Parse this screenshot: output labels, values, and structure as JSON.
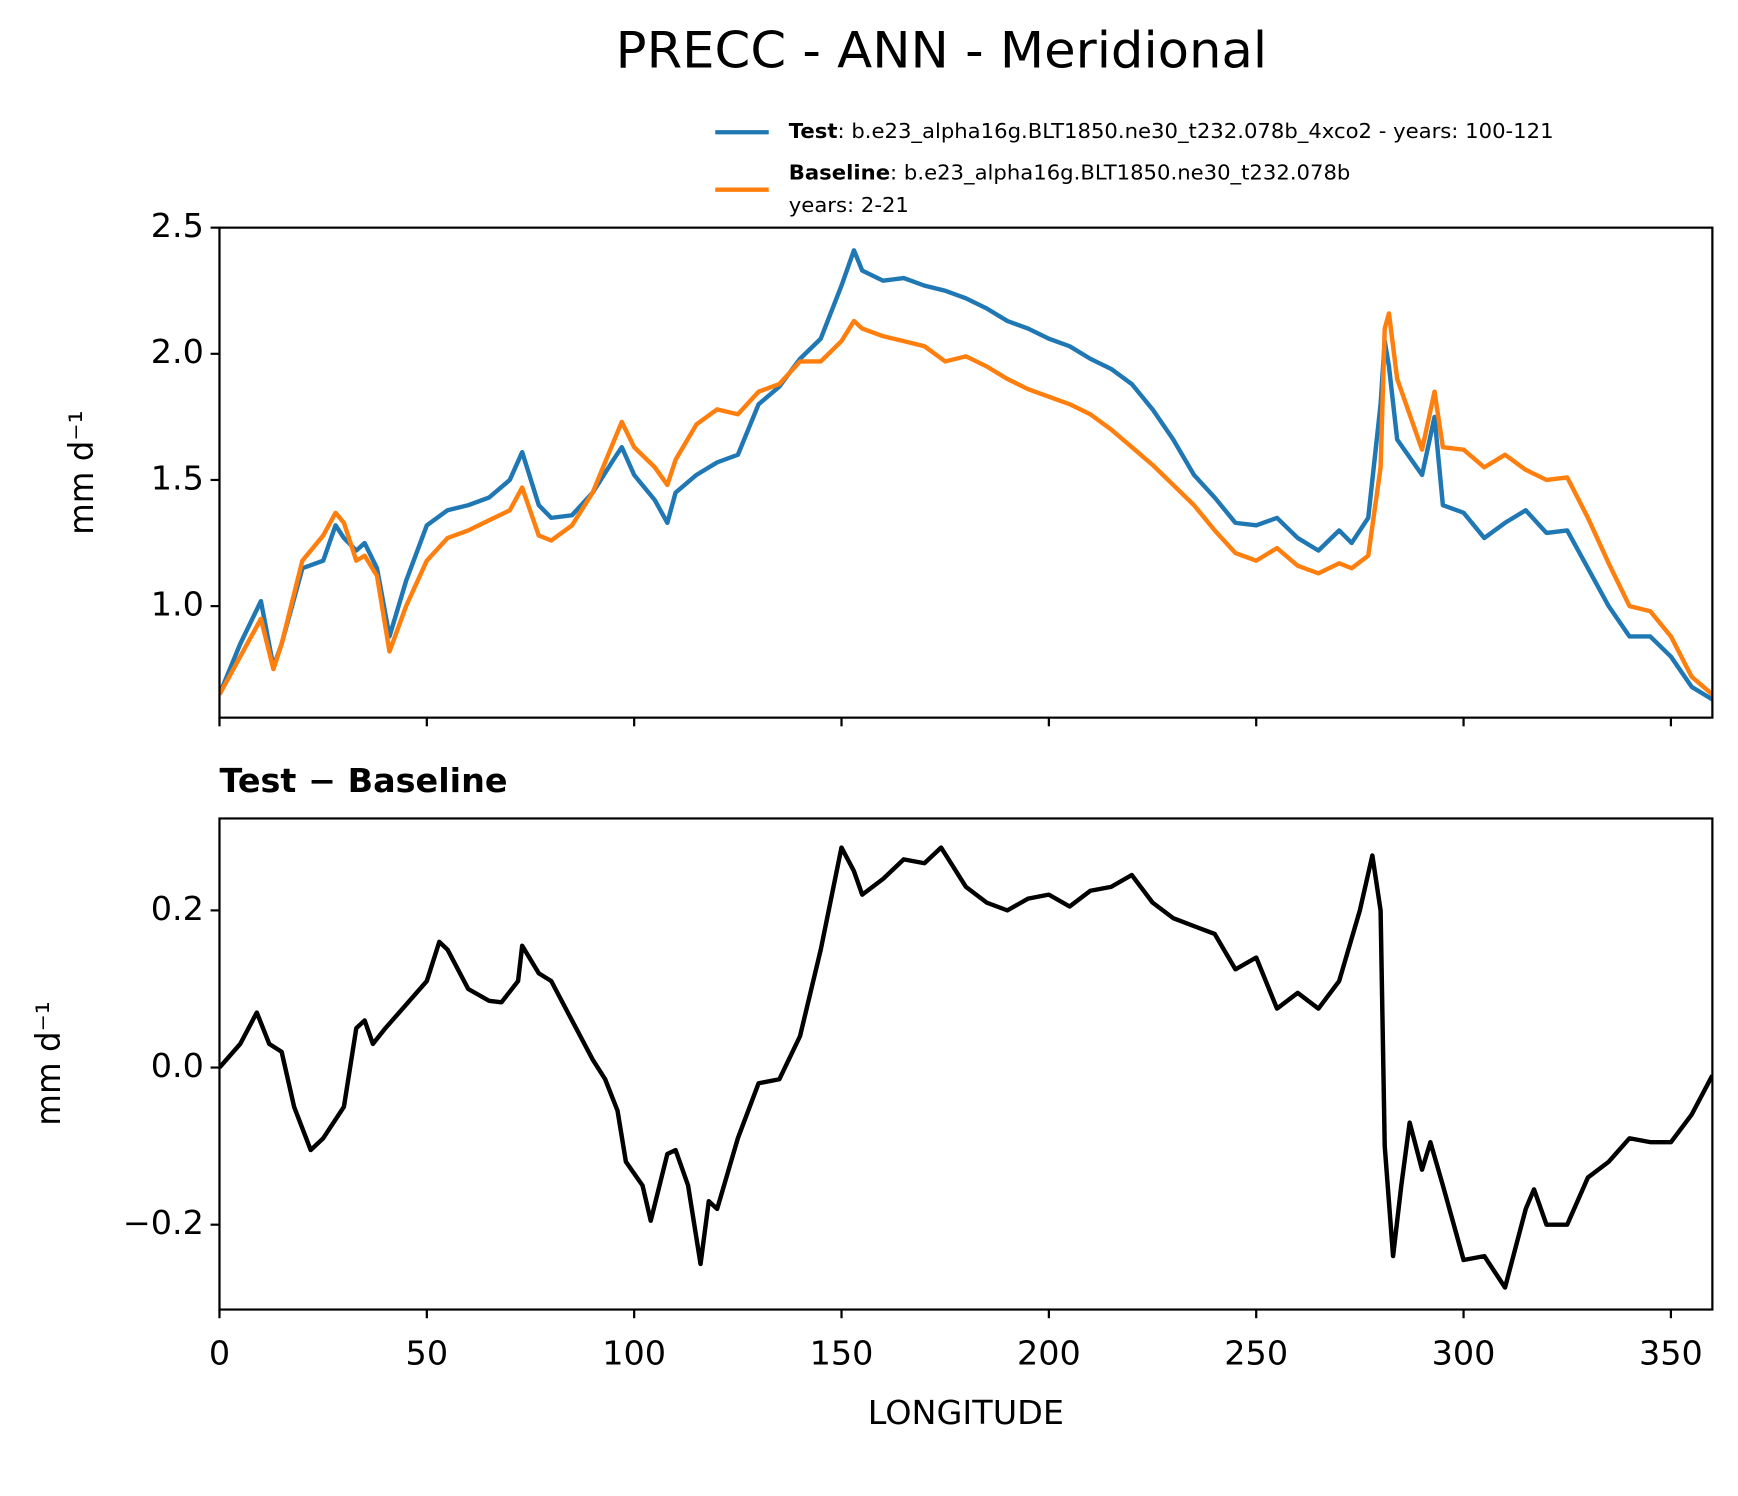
{
  "chart_data": [
    {
      "type": "line",
      "title": "PRECC - ANN - Meridional",
      "ylabel": "mm d⁻¹",
      "x": [
        0,
        5,
        10,
        13,
        15,
        20,
        25,
        28,
        30,
        33,
        35,
        38,
        41,
        45,
        50,
        55,
        60,
        65,
        70,
        73,
        77,
        80,
        85,
        90,
        95,
        97,
        100,
        105,
        108,
        110,
        115,
        120,
        125,
        130,
        135,
        140,
        145,
        150,
        153,
        155,
        160,
        165,
        170,
        175,
        180,
        185,
        190,
        195,
        200,
        205,
        210,
        215,
        220,
        225,
        230,
        235,
        240,
        245,
        250,
        255,
        260,
        265,
        270,
        273,
        277,
        280,
        281,
        282,
        284,
        290,
        293,
        295,
        300,
        305,
        310,
        315,
        320,
        325,
        330,
        335,
        340,
        345,
        350,
        355,
        360
      ],
      "series": [
        {
          "name": "Test",
          "legend_text": [
            ": b.e23_alpha16g.BLT1850.ne30_t232.078b_4xco2 - years: 100-121"
          ],
          "color": "#1f77b4",
          "values": [
            0.65,
            0.85,
            1.02,
            0.76,
            0.85,
            1.15,
            1.18,
            1.32,
            1.27,
            1.22,
            1.25,
            1.15,
            0.88,
            1.1,
            1.32,
            1.38,
            1.4,
            1.43,
            1.5,
            1.61,
            1.4,
            1.35,
            1.36,
            1.45,
            1.58,
            1.63,
            1.52,
            1.42,
            1.33,
            1.45,
            1.52,
            1.57,
            1.6,
            1.8,
            1.87,
            1.98,
            2.06,
            2.27,
            2.41,
            2.33,
            2.29,
            2.3,
            2.27,
            2.25,
            2.22,
            2.18,
            2.13,
            2.1,
            2.06,
            2.03,
            1.98,
            1.94,
            1.88,
            1.78,
            1.66,
            1.52,
            1.43,
            1.33,
            1.32,
            1.35,
            1.27,
            1.22,
            1.3,
            1.25,
            1.35,
            1.8,
            2.05,
            1.95,
            1.66,
            1.52,
            1.75,
            1.4,
            1.37,
            1.27,
            1.33,
            1.38,
            1.29,
            1.3,
            1.15,
            1.0,
            0.88,
            0.88,
            0.8,
            0.68,
            0.63
          ]
        },
        {
          "name": "Baseline",
          "legend_text": [
            ": b.e23_alpha16g.BLT1850.ne30_t232.078b",
            "years: 2-21"
          ],
          "color": "#ff7f0e",
          "values": [
            0.65,
            0.8,
            0.95,
            0.75,
            0.85,
            1.18,
            1.28,
            1.37,
            1.33,
            1.18,
            1.2,
            1.12,
            0.82,
            1.0,
            1.18,
            1.27,
            1.3,
            1.34,
            1.38,
            1.47,
            1.28,
            1.26,
            1.32,
            1.45,
            1.65,
            1.73,
            1.63,
            1.55,
            1.48,
            1.58,
            1.72,
            1.78,
            1.76,
            1.85,
            1.88,
            1.97,
            1.97,
            2.05,
            2.13,
            2.1,
            2.07,
            2.05,
            2.03,
            1.97,
            1.99,
            1.95,
            1.9,
            1.86,
            1.83,
            1.8,
            1.76,
            1.7,
            1.63,
            1.56,
            1.48,
            1.4,
            1.3,
            1.21,
            1.18,
            1.23,
            1.16,
            1.13,
            1.17,
            1.15,
            1.2,
            1.55,
            2.1,
            2.16,
            1.9,
            1.62,
            1.85,
            1.63,
            1.62,
            1.55,
            1.6,
            1.54,
            1.5,
            1.51,
            1.35,
            1.17,
            1.0,
            0.98,
            0.88,
            0.72,
            0.65
          ]
        }
      ],
      "xlim": [
        0,
        360
      ],
      "ylim": [
        0.558,
        2.5
      ],
      "yticks": [
        {
          "value": 1,
          "label": "1.0"
        },
        1.5,
        {
          "value": 2,
          "label": "2.0"
        },
        2.5
      ]
    },
    {
      "type": "line",
      "title": "Test − Baseline",
      "ylabel": "mm d⁻¹",
      "xlabel": "LONGITUDE",
      "x": [
        0,
        5,
        9,
        12,
        15,
        18,
        22,
        25,
        30,
        33,
        35,
        37,
        40,
        45,
        50,
        53,
        55,
        60,
        65,
        68,
        72,
        73,
        77,
        80,
        85,
        90,
        93,
        96,
        98,
        102,
        104,
        108,
        110,
        113,
        116,
        118,
        120,
        125,
        130,
        135,
        140,
        145,
        150,
        153,
        155,
        160,
        165,
        170,
        174,
        180,
        185,
        190,
        195,
        200,
        205,
        210,
        215,
        220,
        225,
        230,
        235,
        240,
        245,
        250,
        255,
        260,
        265,
        270,
        275,
        278,
        280,
        281,
        283,
        285,
        287,
        290,
        292,
        295,
        300,
        305,
        310,
        315,
        317,
        320,
        325,
        330,
        335,
        340,
        345,
        350,
        355,
        360
      ],
      "series": [
        {
          "name": "Test − Baseline",
          "color": "#000000",
          "values": [
            0.0,
            0.03,
            0.07,
            0.03,
            0.02,
            -0.05,
            -0.105,
            -0.09,
            -0.05,
            0.05,
            0.06,
            0.03,
            0.05,
            0.08,
            0.11,
            0.16,
            0.15,
            0.1,
            0.085,
            0.083,
            0.11,
            0.155,
            0.12,
            0.11,
            0.06,
            0.01,
            -0.015,
            -0.055,
            -0.12,
            -0.15,
            -0.195,
            -0.11,
            -0.105,
            -0.15,
            -0.25,
            -0.17,
            -0.18,
            -0.09,
            -0.02,
            -0.015,
            0.04,
            0.15,
            0.28,
            0.25,
            0.22,
            0.24,
            0.265,
            0.26,
            0.28,
            0.23,
            0.21,
            0.2,
            0.215,
            0.22,
            0.205,
            0.225,
            0.23,
            0.245,
            0.21,
            0.19,
            0.18,
            0.17,
            0.125,
            0.14,
            0.075,
            0.095,
            0.075,
            0.11,
            0.2,
            0.27,
            0.2,
            -0.1,
            -0.24,
            -0.15,
            -0.07,
            -0.13,
            -0.095,
            -0.15,
            -0.245,
            -0.24,
            -0.28,
            -0.18,
            -0.155,
            -0.2,
            -0.2,
            -0.14,
            -0.12,
            -0.09,
            -0.095,
            -0.095,
            -0.06,
            -0.01
          ]
        }
      ],
      "xlim": [
        0,
        360
      ],
      "ylim": [
        -0.308,
        0.317
      ],
      "xticks": [
        0,
        50,
        100,
        150,
        200,
        250,
        300,
        350
      ],
      "yticks": [
        {
          "value": -0.2,
          "label": "−0.2"
        },
        {
          "value": 0,
          "label": "0.0"
        },
        0.2
      ]
    }
  ]
}
